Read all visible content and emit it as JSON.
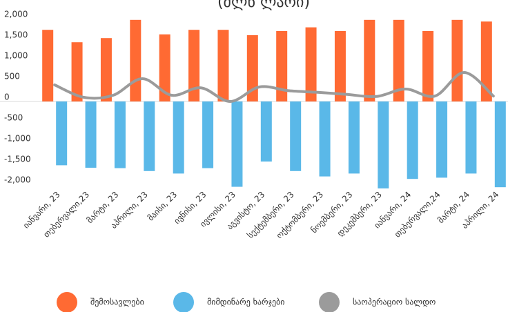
{
  "chart_data": {
    "type": "bar",
    "title": "(მლნ ლარი)",
    "categories": [
      "იანვარი, 23",
      "თებერვალი,23",
      "მარტი, 23",
      "აპრილი, 23",
      "მაისი, 23",
      "ივნისი, 23",
      "ივლისი, 23",
      "აგვისტო, 23",
      "სექტემბერი, 23",
      "ოქტომბერი, 23",
      "ნოემბერი, 23",
      "დეკემბერი, 23",
      "იანვარი, 24",
      "თებერვალი,24",
      "მარტი, 24",
      "აპრილი, 24"
    ],
    "series": [
      {
        "name": "შემოსავლები",
        "color": "#ff6a33",
        "type": "bar",
        "values": [
          1730,
          1430,
          1530,
          1970,
          1620,
          1730,
          1730,
          1600,
          1700,
          1790,
          1700,
          1970,
          1970,
          1700,
          1970,
          1930
        ]
      },
      {
        "name": "მიმდინარე ხარჯები",
        "color": "#5ab8e8",
        "type": "bar",
        "values": [
          -1540,
          -1600,
          -1610,
          -1680,
          -1740,
          -1610,
          -2060,
          -1450,
          -1680,
          -1810,
          -1740,
          -2100,
          -1870,
          -1840,
          -1740,
          -2070
        ]
      },
      {
        "name": "საოპერაციო სალდო",
        "color": "#9b9b9b",
        "type": "line",
        "values": [
          400,
          100,
          150,
          550,
          150,
          330,
          0,
          350,
          260,
          220,
          170,
          120,
          300,
          130,
          700,
          130
        ]
      }
    ],
    "ylim": [
      -2450,
      2450
    ],
    "yticks": [
      {
        "value": 2000,
        "label": "2,000"
      },
      {
        "value": 1500,
        "label": "1,500"
      },
      {
        "value": 1000,
        "label": "1,000"
      },
      500,
      0,
      {
        "value": -500,
        "label": "-500"
      },
      {
        "value": -1000,
        "label": "-1,000"
      },
      {
        "value": -1500,
        "label": "-1,500"
      },
      {
        "value": -2000,
        "label": "-2,000"
      }
    ],
    "legend": "bottom"
  }
}
